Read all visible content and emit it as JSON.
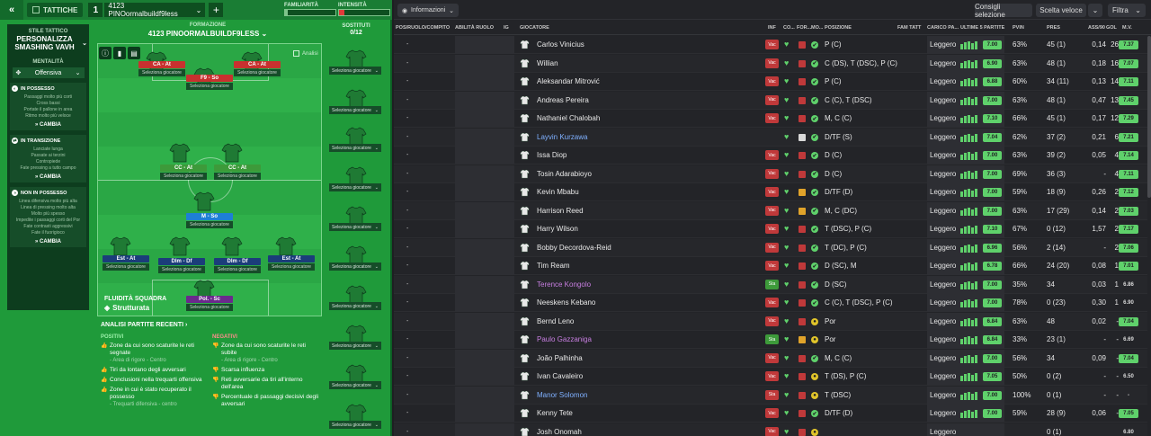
{
  "topbar": {
    "tactics_label": "TATTICHE",
    "slot_number": "1",
    "tactic_name": "4123 PINOormalbuildf9less",
    "familiarity_label": "FAMILIARITÀ",
    "intensity_label": "INTENSITÀ",
    "familiarity_level": 0.05,
    "intensity_level": 0.1
  },
  "style": {
    "small_label": "STILE TATTICO",
    "name": "PERSONALIZZA SMASHING VAVH",
    "mentality_label": "MENTALITÀ",
    "mentality_value": "Offensiva",
    "phases": [
      {
        "title": "IN POSSESSO",
        "lines": [
          "Passaggi molto più corti",
          "Cross bassi",
          "Portate il pallone in area",
          "Ritmo molto più veloce"
        ],
        "button": "CAMBIA"
      },
      {
        "title": "IN TRANSIZIONE",
        "lines": [
          "Lanciate lunga",
          "Passate ai terzini",
          "Contropiede",
          "Fate pressing a tutto campo"
        ],
        "button": "CAMBIA"
      },
      {
        "title": "NON IN POSSESSO",
        "lines": [
          "Linea difensiva molto più alta",
          "Linea di pressing molto alta",
          "Molto più spesso",
          "Impedite i passaggi corti del Por",
          "Fate contrasti aggressivi",
          "Fate il fuorigioco"
        ],
        "button": "CAMBIA"
      }
    ]
  },
  "formation": {
    "label": "FORMAZIONE",
    "name": "4123 PINOORMALBUILDF9LESS",
    "analysis_toggle": "Analisi",
    "fluidity_label": "FLUIDITÀ SQUADRA",
    "fluidity_value": "Strutturata",
    "select_label": "Seleziona giocatore",
    "positions": [
      {
        "role": "CA",
        "duty": "At",
        "color": "#c8312f"
      },
      {
        "role": "CA",
        "duty": "At",
        "color": "#c8312f"
      },
      {
        "role": "F9",
        "duty": "So",
        "color": "#c8312f"
      },
      {
        "role": "CC",
        "duty": "At",
        "color": "#3d9a3a"
      },
      {
        "role": "CC",
        "duty": "At",
        "color": "#3d9a3a"
      },
      {
        "role": "M",
        "duty": "So",
        "color": "#1e7fd6"
      },
      {
        "role": "Est",
        "duty": "At",
        "color": "#1b3d7a"
      },
      {
        "role": "Dlm",
        "duty": "Df",
        "color": "#1b3d7a"
      },
      {
        "role": "Dlm",
        "duty": "Df",
        "color": "#1b3d7a"
      },
      {
        "role": "Est",
        "duty": "At",
        "color": "#1b3d7a"
      },
      {
        "role": "Pol.",
        "duty": "Sc",
        "color": "#6a2a8c"
      }
    ]
  },
  "subs": {
    "label": "SOSTITUTI",
    "count": "0/12",
    "select_label": "Seleziona giocatore"
  },
  "analysis": {
    "title": "ANALISI PARTITE RECENTI",
    "positive_label": "POSITIVI",
    "negative_label": "NEGATIVI",
    "positives": [
      {
        "text": "Zone da cui sono scaturite le reti segnate",
        "sub": "- Area di rigore - Centro"
      },
      {
        "text": "Tiri da lontano degli avversari",
        "sub": ""
      },
      {
        "text": "Conclusioni nella trequarti offensiva",
        "sub": ""
      },
      {
        "text": "Zone in cui è stato recuperato il possesso",
        "sub": "- Trequarti difensiva - centro"
      }
    ],
    "negatives": [
      {
        "text": "Zone da cui sono scaturite le reti subite",
        "sub": "- Area di rigore - Centro"
      },
      {
        "text": "Scarsa influenza",
        "sub": ""
      },
      {
        "text": "Reti avversarie da tiri all'interno dell'area",
        "sub": ""
      },
      {
        "text": "Percentuale di passaggi decisivi degli avversari",
        "sub": ""
      }
    ]
  },
  "squad": {
    "info_label": "Informazioni",
    "consigli_label": "Consigli selezione",
    "scelta_label": "Scelta veloce",
    "filtra_label": "Filtra",
    "headers": [
      "POS/RUOLO/COMPITO",
      "ABILITÀ RUOLO",
      "IG",
      "GIOCATORE",
      "INF",
      "CO...",
      "FOR...",
      "MO...",
      "POSIZIONE",
      "FAM TATT",
      "CARICO PA...",
      "ULTIME 5 PARTITE",
      "PVIN",
      "PRES",
      "ASS/90",
      "GOL",
      "M.V."
    ],
    "players": [
      {
        "name": "Carlos Vinicius",
        "inf": "Vac",
        "inf_color": "#c0393a",
        "form_color": "#5fd16b",
        "mood_color": "#c0393a",
        "pos": "P (C)",
        "carico": "Leggero",
        "rating": "7.00",
        "pvin": "63%",
        "pres": "45 (1)",
        "ass": "0,14",
        "gol": "26",
        "mv": "7.37",
        "name_color": "#e8e8e8",
        "mv_color": "#5fd16b",
        "ic2": "✔",
        "ic2_color": "#5fd16b"
      },
      {
        "name": "Willian",
        "inf": "Vac",
        "inf_color": "#c0393a",
        "form_color": "#5fd16b",
        "mood_color": "#c0393a",
        "pos": "C (DS), T (DSC), P (C)",
        "carico": "Leggero",
        "rating": "6.90",
        "pvin": "63%",
        "pres": "48 (1)",
        "ass": "0,18",
        "gol": "16",
        "mv": "7.07",
        "name_color": "#e8e8e8",
        "mv_color": "#5fd16b",
        "ic2": "✔",
        "ic2_color": "#5fd16b"
      },
      {
        "name": "Aleksandar Mitrović",
        "inf": "Vac",
        "inf_color": "#c0393a",
        "form_color": "#5fd16b",
        "mood_color": "#c0393a",
        "pos": "P (C)",
        "carico": "Leggero",
        "rating": "6.88",
        "pvin": "60%",
        "pres": "34 (11)",
        "ass": "0,13",
        "gol": "14",
        "mv": "7.11",
        "name_color": "#e8e8e8",
        "mv_color": "#5fd16b",
        "ic2": "✔",
        "ic2_color": "#5fd16b"
      },
      {
        "name": "Andreas Pereira",
        "inf": "Vac",
        "inf_color": "#c0393a",
        "form_color": "#5fd16b",
        "mood_color": "#c0393a",
        "pos": "C (C), T (DSC)",
        "carico": "Leggero",
        "rating": "7.00",
        "pvin": "63%",
        "pres": "48 (1)",
        "ass": "0,47",
        "gol": "13",
        "mv": "7.45",
        "name_color": "#e8e8e8",
        "mv_color": "#5fd16b",
        "ic2": "✔",
        "ic2_color": "#5fd16b"
      },
      {
        "name": "Nathaniel Chalobah",
        "inf": "Vac",
        "inf_color": "#c0393a",
        "form_color": "#5fd16b",
        "mood_color": "#c0393a",
        "pos": "M, C (C)",
        "carico": "Leggero",
        "rating": "7.10",
        "pvin": "66%",
        "pres": "45 (1)",
        "ass": "0,17",
        "gol": "12",
        "mv": "7.29",
        "name_color": "#e8e8e8",
        "mv_color": "#5fd16b",
        "ic2": "✔",
        "ic2_color": "#5fd16b"
      },
      {
        "name": "Layvin Kurzawa",
        "inf": "",
        "inf_color": "transparent",
        "form_color": "#5fd16b",
        "mood_color": "#d9d9d9",
        "pos": "D/TF (S)",
        "carico": "Leggero",
        "rating": "7.04",
        "pvin": "62%",
        "pres": "37 (2)",
        "ass": "0,21",
        "gol": "6",
        "mv": "7.21",
        "name_color": "#7fb0ff",
        "mv_color": "#5fd16b",
        "ic2": "✔",
        "ic2_color": "#5fd16b"
      },
      {
        "name": "Issa Diop",
        "inf": "Vac",
        "inf_color": "#c0393a",
        "form_color": "#5fd16b",
        "mood_color": "#c0393a",
        "pos": "D (C)",
        "carico": "Leggero",
        "rating": "7.00",
        "pvin": "63%",
        "pres": "39 (2)",
        "ass": "0,05",
        "gol": "4",
        "mv": "7.14",
        "name_color": "#e8e8e8",
        "mv_color": "#5fd16b",
        "ic2": "✔",
        "ic2_color": "#5fd16b"
      },
      {
        "name": "Tosin Adarabioyo",
        "inf": "Vac",
        "inf_color": "#c0393a",
        "form_color": "#5fd16b",
        "mood_color": "#c0393a",
        "pos": "D (C)",
        "carico": "Leggero",
        "rating": "7.00",
        "pvin": "69%",
        "pres": "36 (3)",
        "ass": "-",
        "gol": "4",
        "mv": "7.11",
        "name_color": "#e8e8e8",
        "mv_color": "#5fd16b",
        "ic2": "✔",
        "ic2_color": "#5fd16b"
      },
      {
        "name": "Kevin Mbabu",
        "inf": "Vac",
        "inf_color": "#c0393a",
        "form_color": "#5fd16b",
        "mood_color": "#e0a32a",
        "pos": "D/TF (D)",
        "carico": "Leggero",
        "rating": "7.00",
        "pvin": "59%",
        "pres": "18 (9)",
        "ass": "0,26",
        "gol": "2",
        "mv": "7.12",
        "name_color": "#e8e8e8",
        "mv_color": "#5fd16b",
        "ic2": "✔",
        "ic2_color": "#5fd16b"
      },
      {
        "name": "Harrison Reed",
        "inf": "Vac",
        "inf_color": "#c0393a",
        "form_color": "#5fd16b",
        "mood_color": "#e0a32a",
        "pos": "M, C (DC)",
        "carico": "Leggero",
        "rating": "7.00",
        "pvin": "63%",
        "pres": "17 (29)",
        "ass": "0,14",
        "gol": "2",
        "mv": "7.03",
        "name_color": "#e8e8e8",
        "mv_color": "#5fd16b",
        "ic2": "✔",
        "ic2_color": "#5fd16b"
      },
      {
        "name": "Harry Wilson",
        "inf": "Vac",
        "inf_color": "#c0393a",
        "form_color": "#5fd16b",
        "mood_color": "#c0393a",
        "pos": "T (DSC), P (C)",
        "carico": "Leggero",
        "rating": "7.10",
        "pvin": "67%",
        "pres": "0 (12)",
        "ass": "1,57",
        "gol": "2",
        "mv": "7.17",
        "name_color": "#e8e8e8",
        "mv_color": "#5fd16b",
        "ic2": "✔",
        "ic2_color": "#5fd16b"
      },
      {
        "name": "Bobby Decordova-Reid",
        "inf": "Vac",
        "inf_color": "#c0393a",
        "form_color": "#5fd16b",
        "mood_color": "#c0393a",
        "pos": "T (DC), P (C)",
        "carico": "Leggero",
        "rating": "6.96",
        "pvin": "56%",
        "pres": "2 (14)",
        "ass": "-",
        "gol": "2",
        "mv": "7.06",
        "name_color": "#e8e8e8",
        "mv_color": "#5fd16b",
        "ic2": "✔",
        "ic2_color": "#5fd16b"
      },
      {
        "name": "Tim Ream",
        "inf": "Vac",
        "inf_color": "#c0393a",
        "form_color": "#5fd16b",
        "mood_color": "#c0393a",
        "pos": "D (SC), M",
        "carico": "Leggero",
        "rating": "6.78",
        "pvin": "66%",
        "pres": "24 (20)",
        "ass": "0,08",
        "gol": "1",
        "mv": "7.01",
        "name_color": "#e8e8e8",
        "mv_color": "#5fd16b",
        "ic2": "✔",
        "ic2_color": "#5fd16b"
      },
      {
        "name": "Terence Kongolo",
        "inf": "Sta",
        "inf_color": "#3d9a3a",
        "form_color": "#5fd16b",
        "mood_color": "#c0393a",
        "pos": "D (SC)",
        "carico": "Leggero",
        "rating": "7.00",
        "pvin": "35%",
        "pres": "34",
        "ass": "0,03",
        "gol": "1",
        "mv": "6.86",
        "name_color": "#c77ee0",
        "mv_color": "#d9d9d9",
        "ic2": "✔",
        "ic2_color": "#5fd16b"
      },
      {
        "name": "Neeskens Kebano",
        "inf": "Vac",
        "inf_color": "#c0393a",
        "form_color": "#5fd16b",
        "mood_color": "#c0393a",
        "pos": "C (C), T (DSC), P (C)",
        "carico": "Leggero",
        "rating": "7.00",
        "pvin": "78%",
        "pres": "0 (23)",
        "ass": "0,30",
        "gol": "1",
        "mv": "6.90",
        "name_color": "#e8e8e8",
        "mv_color": "#d9d9d9",
        "ic2": "✔",
        "ic2_color": "#5fd16b"
      },
      {
        "name": "Bernd Leno",
        "inf": "Vac",
        "inf_color": "#c0393a",
        "form_color": "#5fd16b",
        "mood_color": "#c0393a",
        "pos": "Por",
        "carico": "Leggero",
        "rating": "6.84",
        "pvin": "63%",
        "pres": "48",
        "ass": "0,02",
        "gol": "-",
        "mv": "7.04",
        "name_color": "#e8e8e8",
        "mv_color": "#5fd16b",
        "ic2": "●",
        "ic2_color": "#e0c42a"
      },
      {
        "name": "Paulo Gazzaniga",
        "inf": "Sta",
        "inf_color": "#3d9a3a",
        "form_color": "#5fd16b",
        "mood_color": "#e0a32a",
        "pos": "Por",
        "carico": "Leggero",
        "rating": "6.84",
        "pvin": "33%",
        "pres": "23 (1)",
        "ass": "-",
        "gol": "-",
        "mv": "6.69",
        "name_color": "#c77ee0",
        "mv_color": "#d9d9d9",
        "ic2": "●",
        "ic2_color": "#e0c42a"
      },
      {
        "name": "João Palhinha",
        "inf": "Vac",
        "inf_color": "#c0393a",
        "form_color": "#5fd16b",
        "mood_color": "#c0393a",
        "pos": "M, C (C)",
        "carico": "Leggero",
        "rating": "7.00",
        "pvin": "56%",
        "pres": "34",
        "ass": "0,09",
        "gol": "-",
        "mv": "7.04",
        "name_color": "#e8e8e8",
        "mv_color": "#5fd16b",
        "ic2": "✔",
        "ic2_color": "#5fd16b"
      },
      {
        "name": "Ivan Cavaleiro",
        "inf": "Vac",
        "inf_color": "#c0393a",
        "form_color": "#5fd16b",
        "mood_color": "#c0393a",
        "pos": "T (DS), P (C)",
        "carico": "Leggero",
        "rating": "7.05",
        "pvin": "50%",
        "pres": "0 (2)",
        "ass": "-",
        "gol": "-",
        "mv": "6.50",
        "name_color": "#e8e8e8",
        "mv_color": "#d9d9d9",
        "ic2": "●",
        "ic2_color": "#e0c42a"
      },
      {
        "name": "Manor Solomon",
        "inf": "Sta",
        "inf_color": "#c0393a",
        "form_color": "#5fd16b",
        "mood_color": "#c0393a",
        "pos": "T (DSC)",
        "carico": "Leggero",
        "rating": "7.00",
        "pvin": "100%",
        "pres": "0 (1)",
        "ass": "-",
        "gol": "-",
        "mv": "-",
        "name_color": "#7fb0ff",
        "mv_color": "#d9d9d9",
        "ic2": "●",
        "ic2_color": "#e0c42a"
      },
      {
        "name": "Kenny Tete",
        "inf": "Vac",
        "inf_color": "#c0393a",
        "form_color": "#5fd16b",
        "mood_color": "#c0393a",
        "pos": "D/TF (D)",
        "carico": "Leggero",
        "rating": "7.00",
        "pvin": "59%",
        "pres": "28 (9)",
        "ass": "0,06",
        "gol": "-",
        "mv": "7.05",
        "name_color": "#e8e8e8",
        "mv_color": "#5fd16b",
        "ic2": "✔",
        "ic2_color": "#5fd16b"
      },
      {
        "name": "Josh Onomah",
        "inf": "Vac",
        "inf_color": "#c0393a",
        "form_color": "#5fd16b",
        "mood_color": "#c0393a",
        "pos": "",
        "carico": "Leggero",
        "rating": "",
        "pvin": "",
        "pres": "0 (1)",
        "ass": "",
        "gol": "",
        "mv": "6.80",
        "name_color": "#e8e8e8",
        "mv_color": "#d9d9d9",
        "ic2": "●",
        "ic2_color": "#e0c42a"
      }
    ]
  }
}
